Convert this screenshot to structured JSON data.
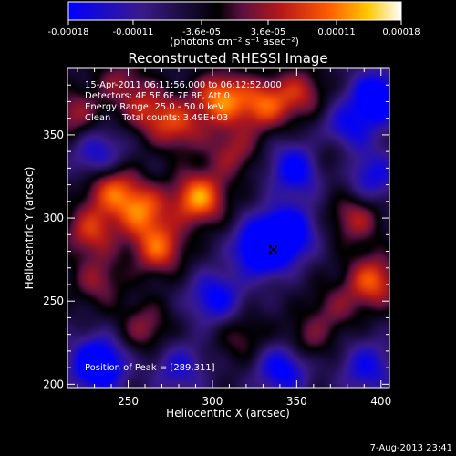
{
  "chart_data": {
    "type": "heatmap",
    "title": "Reconstructed RHESSI Image",
    "xlabel": "Heliocentric X (arcsec)",
    "ylabel": "Heliocentric Y (arcsec)",
    "xlim": [
      214,
      405
    ],
    "ylim": [
      198,
      390
    ],
    "x_ticks": [
      250,
      300,
      350,
      400
    ],
    "y_ticks": [
      200,
      250,
      300,
      350
    ],
    "x_tick_labels": [
      "250",
      "300",
      "350",
      "400"
    ],
    "y_tick_labels": [
      "200",
      "250",
      "300",
      "350"
    ],
    "colorbar": {
      "range": [
        -0.00018,
        0.00018
      ],
      "ticks": [
        -0.00018,
        -0.00011,
        -3.6e-05,
        3.6e-05,
        0.00011,
        0.00018
      ],
      "tick_labels": [
        "-0.00018",
        "-0.00011",
        "-3.6e-05",
        "3.6e-05",
        "0.00011",
        "0.00018"
      ],
      "unit_label": "(photons cm⁻² s⁻¹ asec⁻²)",
      "colors": [
        "#0000ff",
        "#3a1a8a",
        "#000000",
        "#5a1040",
        "#b81818",
        "#ff5a00",
        "#ffc800",
        "#ffffff"
      ]
    },
    "annotations": [
      "15-Apr-2011 06:11:56.000 to 06:12:52.000",
      "Detectors: 4F 5F 6F 7F 8F, Att 0",
      "Energy Range: 25.0 - 50.0 keV",
      "Clean    Total counts: 3.49E+03"
    ],
    "peak_label": "Position of Peak = [289,311]",
    "peak_position": [
      289,
      311
    ],
    "peak_marker_position": [
      336,
      281
    ],
    "date_stamp": "7-Aug-2013 23:41",
    "sources": [
      {
        "x": 292,
        "y": 312,
        "amp": 1.0
      },
      {
        "x": 305,
        "y": 372,
        "amp": 0.9
      },
      {
        "x": 330,
        "y": 368,
        "amp": 0.75
      },
      {
        "x": 258,
        "y": 305,
        "amp": 0.8
      },
      {
        "x": 240,
        "y": 318,
        "amp": 0.75
      },
      {
        "x": 268,
        "y": 282,
        "amp": 0.8
      },
      {
        "x": 228,
        "y": 292,
        "amp": 0.65
      },
      {
        "x": 280,
        "y": 355,
        "amp": 0.6
      },
      {
        "x": 262,
        "y": 365,
        "amp": 0.55
      },
      {
        "x": 352,
        "y": 375,
        "amp": 0.55
      },
      {
        "x": 312,
        "y": 340,
        "amp": 0.5
      },
      {
        "x": 395,
        "y": 262,
        "amp": 0.8
      },
      {
        "x": 385,
        "y": 300,
        "amp": 0.55
      },
      {
        "x": 232,
        "y": 262,
        "amp": 0.45
      },
      {
        "x": 260,
        "y": 234,
        "amp": 0.45
      },
      {
        "x": 318,
        "y": 228,
        "amp": 0.35
      },
      {
        "x": 355,
        "y": 225,
        "amp": 0.4
      },
      {
        "x": 372,
        "y": 245,
        "amp": 0.35
      },
      {
        "x": 218,
        "y": 362,
        "amp": 0.5
      },
      {
        "x": 370,
        "y": 340,
        "amp": 0.45
      },
      {
        "x": 245,
        "y": 382,
        "amp": 0.4
      },
      {
        "x": 330,
        "y": 282,
        "amp": -1.2
      },
      {
        "x": 345,
        "y": 292,
        "amp": -0.9
      },
      {
        "x": 350,
        "y": 330,
        "amp": -0.8
      },
      {
        "x": 232,
        "y": 212,
        "amp": -1.1
      },
      {
        "x": 398,
        "y": 372,
        "amp": -1.0
      },
      {
        "x": 378,
        "y": 352,
        "amp": -0.7
      },
      {
        "x": 302,
        "y": 252,
        "amp": -0.7
      },
      {
        "x": 342,
        "y": 210,
        "amp": -0.8
      },
      {
        "x": 232,
        "y": 338,
        "amp": -0.6
      },
      {
        "x": 392,
        "y": 210,
        "amp": -0.6
      },
      {
        "x": 280,
        "y": 210,
        "amp": -0.5
      },
      {
        "x": 395,
        "y": 325,
        "amp": -0.6
      }
    ]
  }
}
